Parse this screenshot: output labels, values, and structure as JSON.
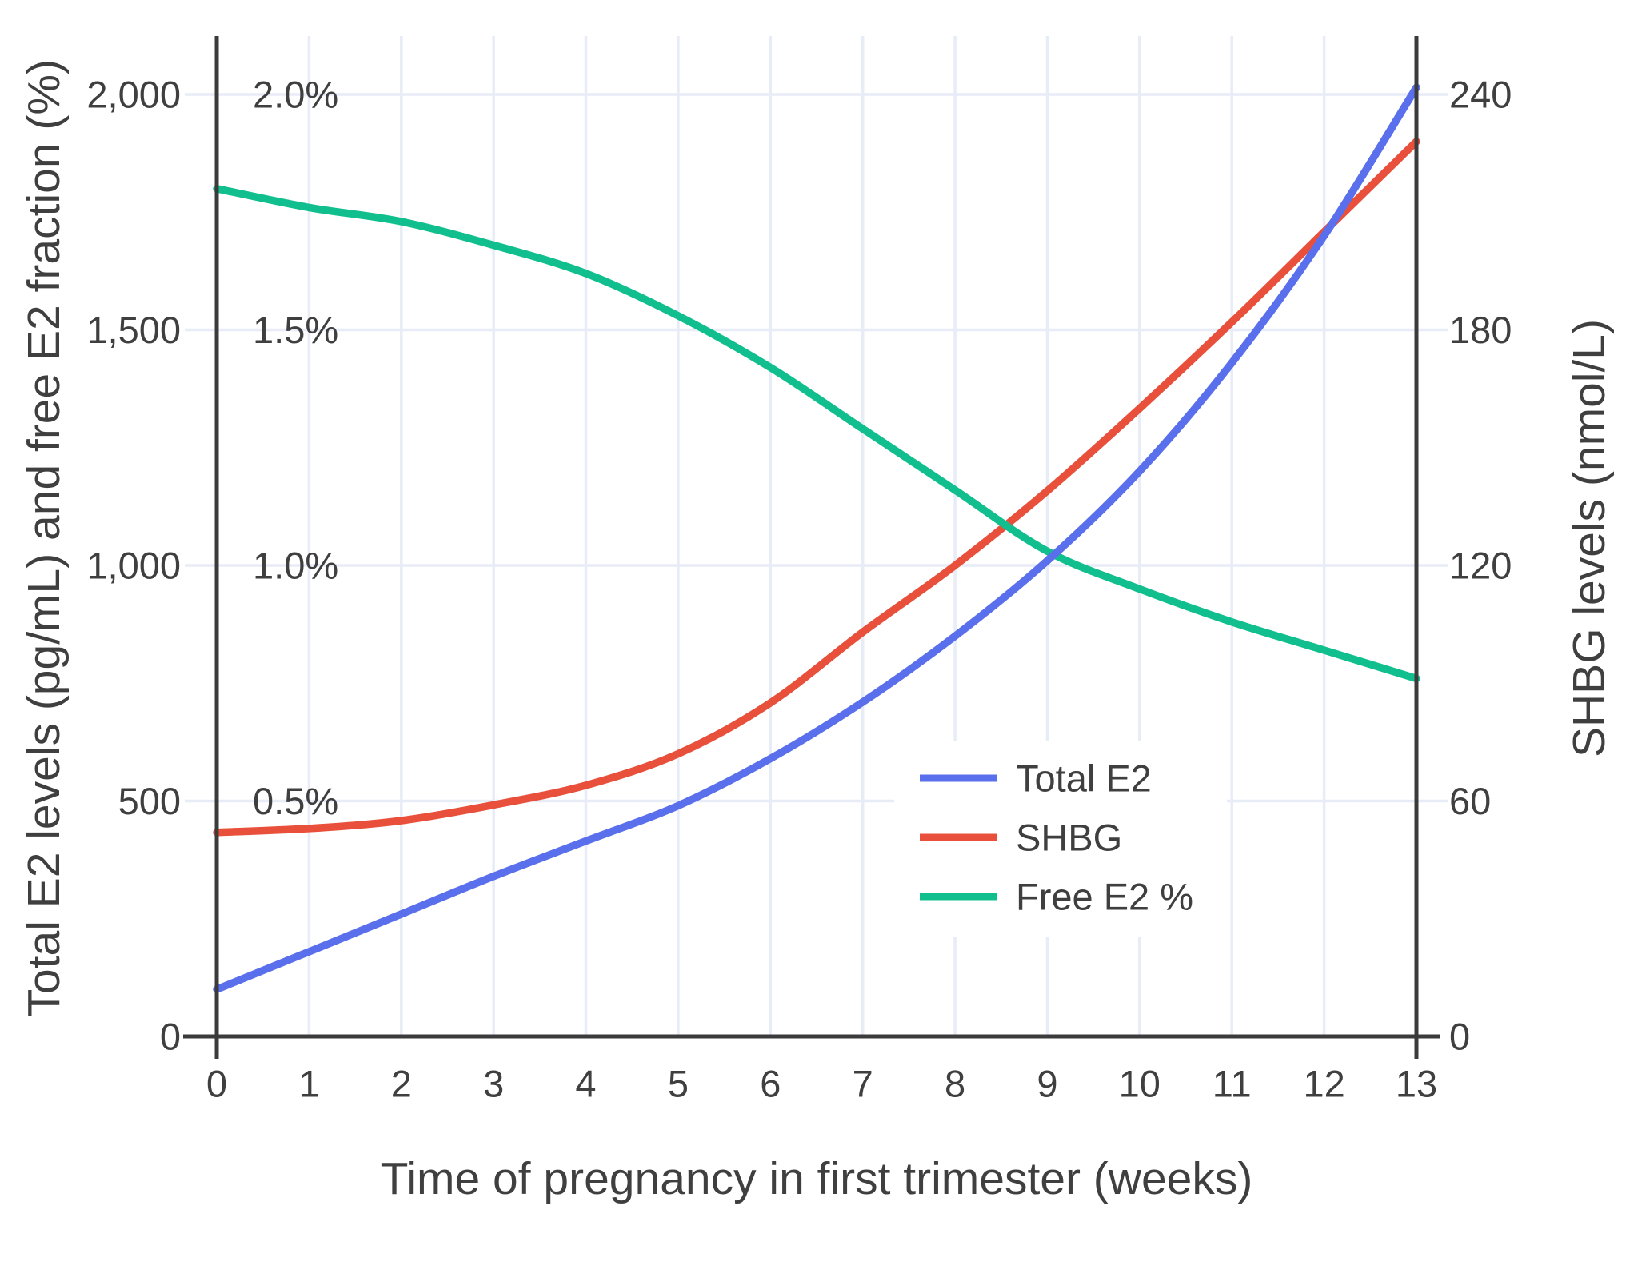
{
  "chart_data": {
    "type": "line",
    "title": "",
    "x_label": "Time of pregnancy in first trimester (weeks)",
    "y_left_label": "Total E2 levels (pg/mL) and free E2 fraction (%)",
    "y_right_label": "SHBG levels (nmol/L)",
    "x": [
      0,
      1,
      2,
      3,
      4,
      5,
      6,
      7,
      8,
      9,
      10,
      11,
      12,
      13
    ],
    "x_tick_labels": [
      "0",
      "1",
      "2",
      "3",
      "4",
      "5",
      "6",
      "7",
      "8",
      "9",
      "10",
      "11",
      "12",
      "13"
    ],
    "y_left_axis": {
      "min": 0,
      "max_gridline": 2000,
      "ticks": [
        {
          "value": 0,
          "label": "0"
        },
        {
          "value": 500,
          "label": "500"
        },
        {
          "value": 1000,
          "label": "1,000"
        },
        {
          "value": 1500,
          "label": "1,500"
        },
        {
          "value": 2000,
          "label": "2,000"
        }
      ]
    },
    "y_left_percent_labels": [
      {
        "value": 500,
        "label": "0.5%"
      },
      {
        "value": 1000,
        "label": "1.0%"
      },
      {
        "value": 1500,
        "label": "1.5%"
      },
      {
        "value": 2000,
        "label": "2.0%"
      }
    ],
    "y_right_axis": {
      "min": 0,
      "max": 240,
      "ticks": [
        {
          "value": 0,
          "label": "0"
        },
        {
          "value": 60,
          "label": "60"
        },
        {
          "value": 120,
          "label": "120"
        },
        {
          "value": 180,
          "label": "180"
        },
        {
          "value": 240,
          "label": "240"
        }
      ]
    },
    "series": [
      {
        "name": "SHBG",
        "unit": "nmol/L",
        "axis": "right",
        "color": "#E8503C",
        "values": [
          52,
          53,
          55,
          59,
          64,
          72,
          85,
          103,
          120,
          139,
          160,
          182,
          205,
          228
        ]
      },
      {
        "name": "Free E2 %",
        "unit": "%",
        "axis": "left_percent",
        "color": "#10BF8D",
        "values": [
          1.8,
          1.76,
          1.73,
          1.68,
          1.62,
          1.53,
          1.42,
          1.29,
          1.16,
          1.03,
          0.95,
          0.88,
          0.82,
          0.76
        ]
      },
      {
        "name": "Total E2",
        "unit": "pg/mL",
        "axis": "left",
        "color": "#5A6FEC",
        "values": [
          100,
          180,
          260,
          340,
          415,
          490,
          590,
          710,
          850,
          1010,
          1200,
          1430,
          1700,
          2015
        ]
      }
    ],
    "legend": {
      "position": "inside-right-lower",
      "items": [
        {
          "label": "Total E2"
        },
        {
          "label": "SHBG"
        },
        {
          "label": "Free E2 %"
        }
      ]
    },
    "grid": true,
    "background": "#FFFFFF"
  },
  "style": {
    "grid_color": "#E7ECF7",
    "axis_color": "#3B3B3B",
    "text_color": "#3F3F3F",
    "legend_background": "#FFFFFF"
  }
}
